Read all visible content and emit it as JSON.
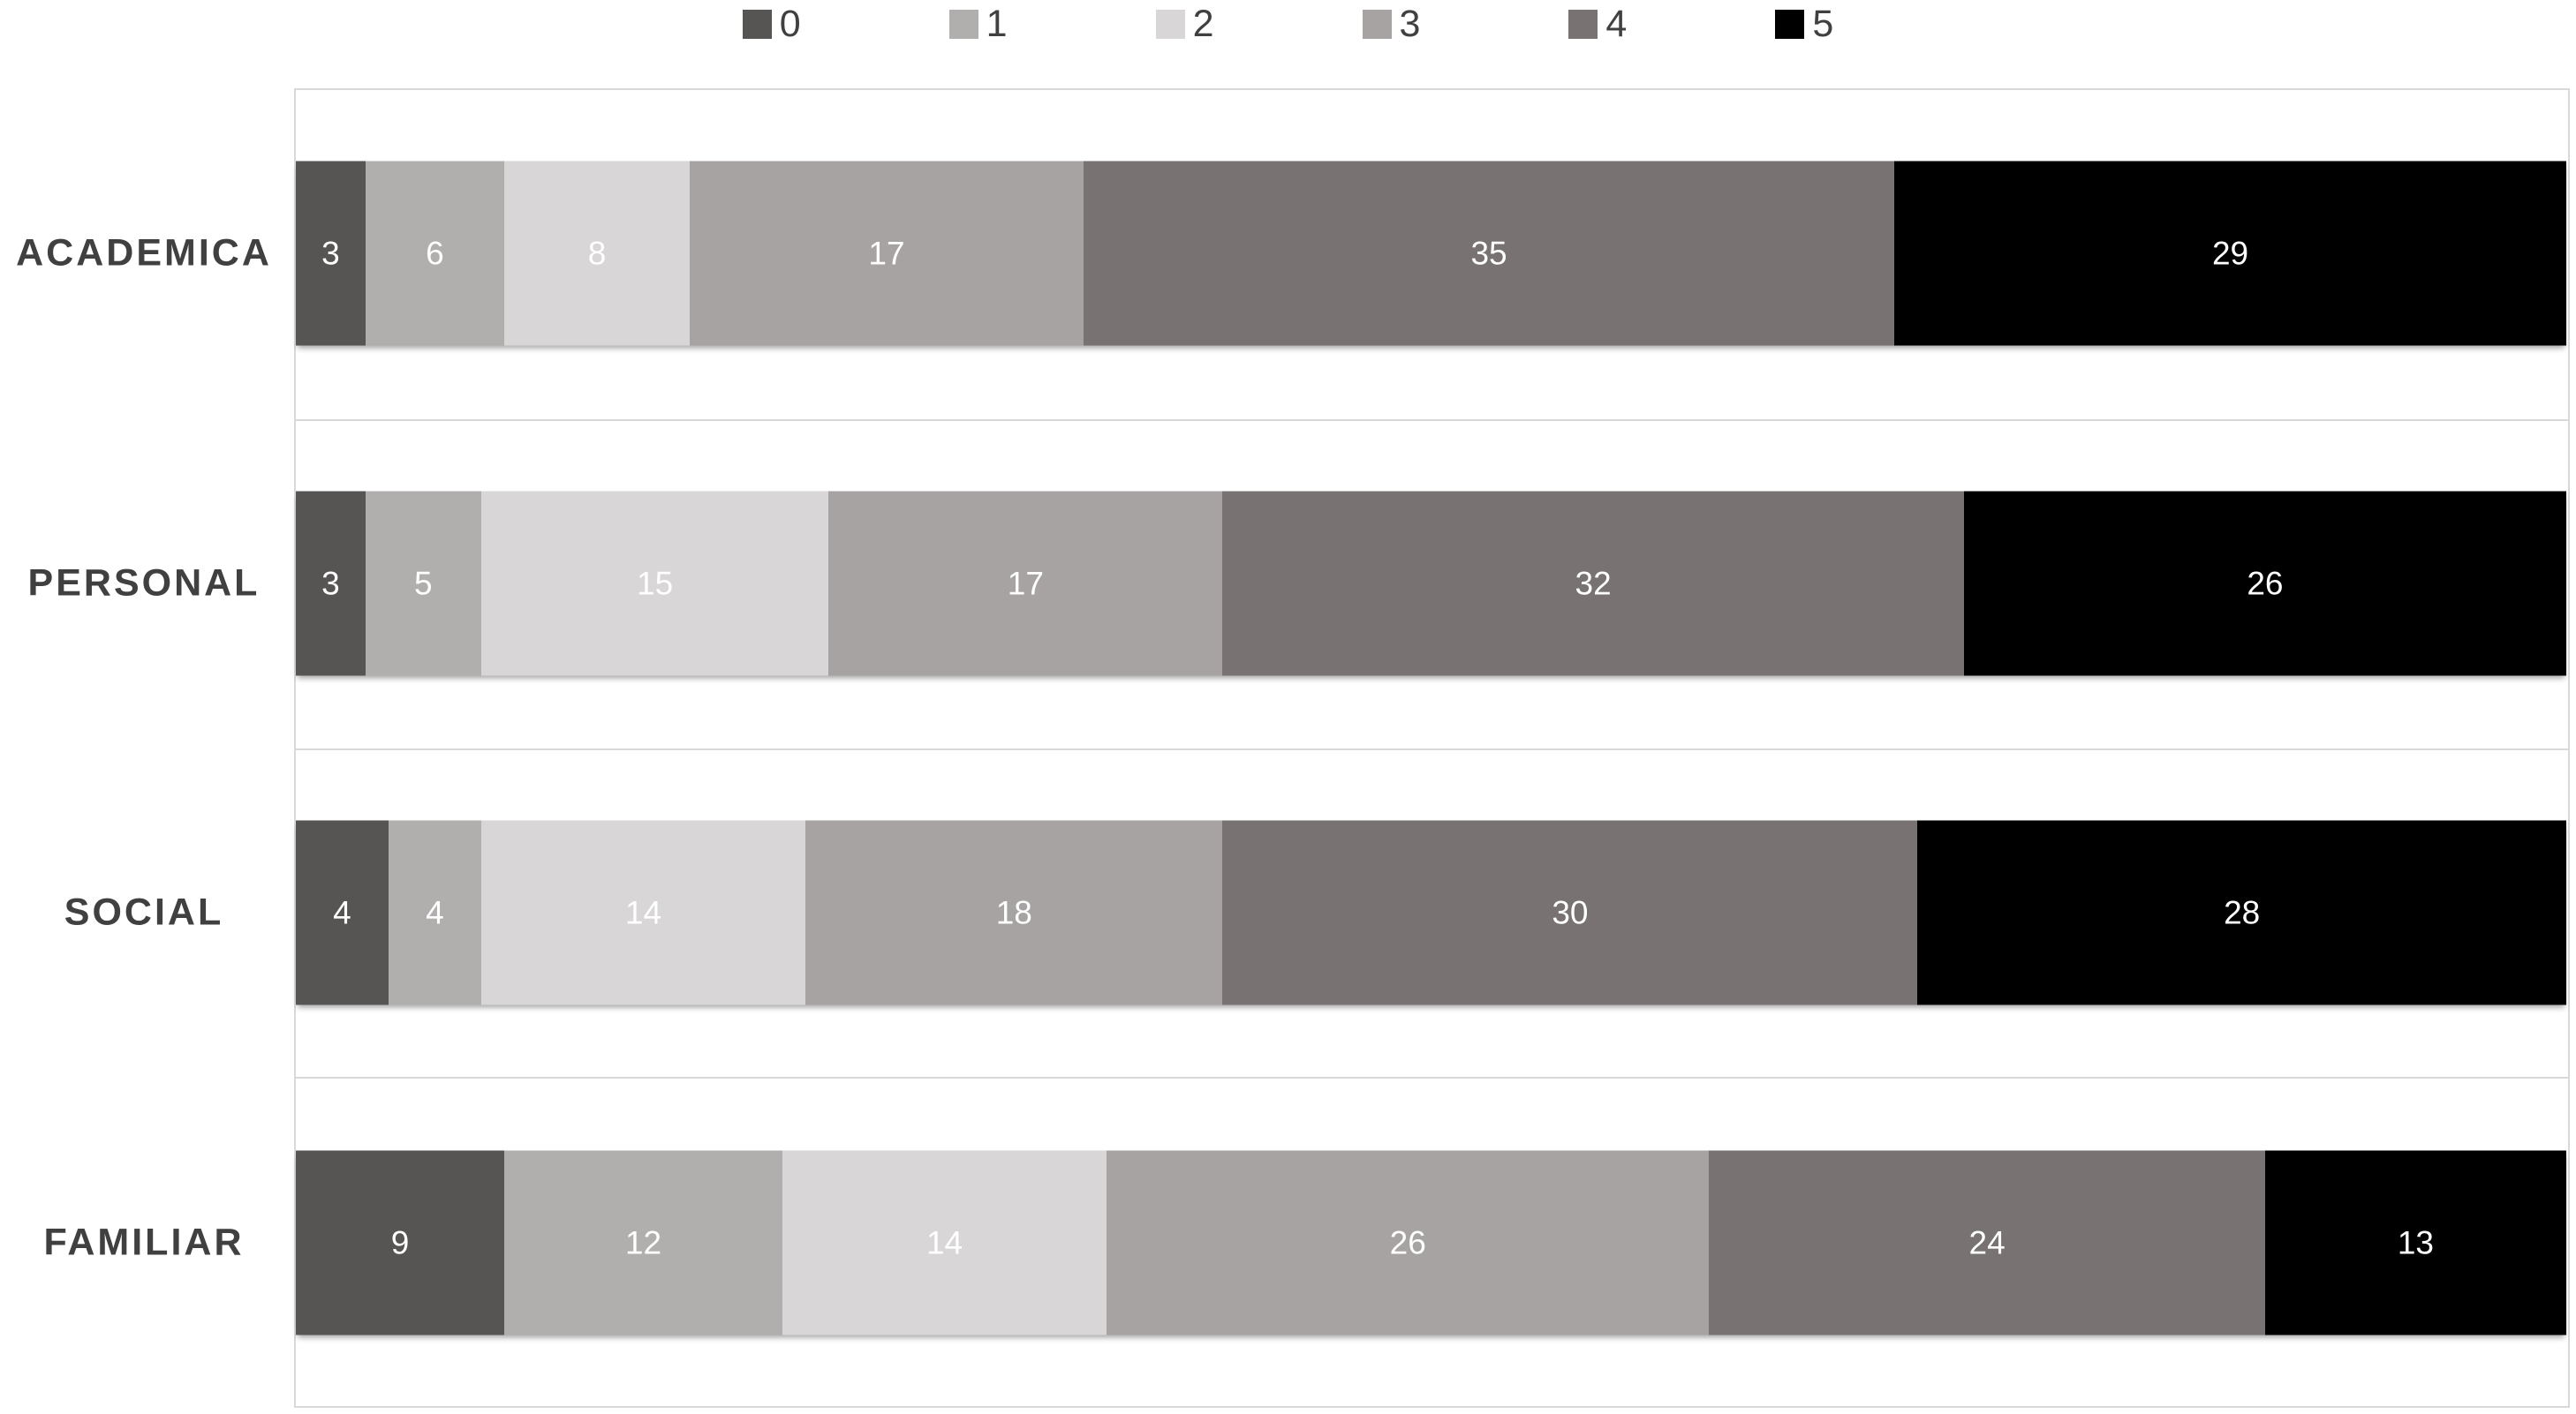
{
  "chart_data": {
    "type": "bar",
    "orientation": "horizontal",
    "stacked": true,
    "title": "",
    "xlabel": "",
    "ylabel": "",
    "categories": [
      "ACADEMICA",
      "PERSONAL",
      "SOCIAL",
      "FAMILIAR"
    ],
    "series": [
      {
        "name": "0",
        "color": "#575454",
        "values": [
          3,
          3,
          4,
          9
        ]
      },
      {
        "name": "1",
        "color": "#B1AEAE",
        "values": [
          6,
          5,
          4,
          12
        ]
      },
      {
        "name": "2",
        "color": "#D8D6D6",
        "values": [
          8,
          15,
          14,
          14
        ]
      },
      {
        "name": "3",
        "color": "#A7A3A3",
        "values": [
          17,
          17,
          18,
          26
        ]
      },
      {
        "name": "4",
        "color": "#787272",
        "values": [
          35,
          32,
          30,
          24
        ]
      },
      {
        "name": "5",
        "color": "#000000",
        "values": [
          29,
          26,
          28,
          13
        ]
      }
    ],
    "row_totals": [
      98,
      98,
      98,
      98
    ],
    "xlim": [
      0,
      98
    ],
    "data_labels": true,
    "data_label_color": "#ffffff",
    "legend_position": "top",
    "grid": "category-boundaries"
  },
  "colors": {
    "background": "#ffffff",
    "plot_border": "#d9d9d9",
    "gridline": "#d9d9d9",
    "legend_label": "#404040",
    "category_label": "#404040"
  }
}
